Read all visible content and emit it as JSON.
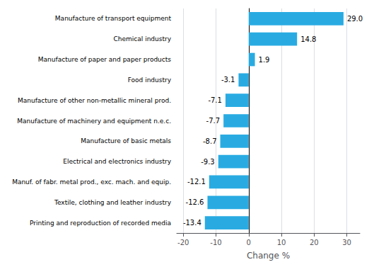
{
  "chart_data": {
    "type": "bar",
    "orientation": "horizontal",
    "categories": [
      "Printing and reproduction of recorded media",
      "Textile, clothing and leather industry",
      "Manuf. of fabr. metal prod., exc. mach. and equip.",
      "Electrical and electronics industry",
      "Manufacture of basic metals",
      "Manufacture of machinery and equipment n.e.c.",
      "Manufacture of other non-metallic mineral prod.",
      "Food industry",
      "Manufacture of paper and paper products",
      "Chemical industry",
      "Manufacture of transport equipment"
    ],
    "values": [
      -13.4,
      -12.6,
      -12.1,
      -9.3,
      -8.7,
      -7.7,
      -7.1,
      -3.1,
      1.9,
      14.8,
      29.0
    ],
    "value_labels": [
      "-13.4",
      "-12.6",
      "-12.1",
      "-9.3",
      "-8.7",
      "-7.7",
      "-7.1",
      "-3.1",
      "1.9",
      "14.8",
      "29.0"
    ],
    "data_labels": true,
    "color": "#29abe2",
    "xlabel": "Change %",
    "xlim": [
      -22,
      34
    ],
    "xticks": [
      -20,
      -10,
      0,
      10,
      20,
      30
    ],
    "grid": true
  }
}
